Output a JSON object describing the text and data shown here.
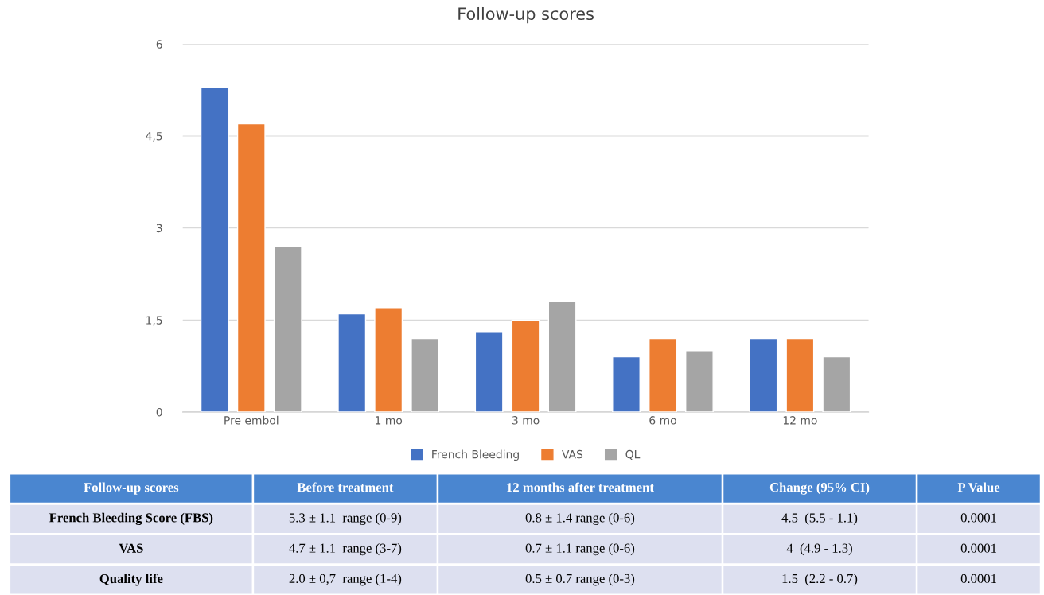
{
  "chart_data": [
    {
      "type": "bar",
      "title": "Follow-up scores",
      "categories": [
        "Pre embol",
        "1 mo",
        "3 mo",
        "6 mo",
        "12 mo"
      ],
      "series": [
        {
          "name": "French Bleeding",
          "color": "#4472c4",
          "values": [
            5.3,
            1.6,
            1.3,
            0.9,
            1.2
          ]
        },
        {
          "name": "VAS",
          "color": "#ed7d31",
          "values": [
            4.7,
            1.7,
            1.5,
            1.2,
            1.2
          ]
        },
        {
          "name": "QL",
          "color": "#a5a5a5",
          "values": [
            2.7,
            1.2,
            1.8,
            1.0,
            0.9
          ]
        }
      ],
      "ylim": [
        0,
        6
      ],
      "yticks": [
        0,
        {
          "value": 1.5,
          "label": "1,5"
        },
        3,
        {
          "value": 4.5,
          "label": "4,5"
        },
        6
      ],
      "grid": "y",
      "legend": "bottom"
    },
    {
      "type": "other",
      "categories": [
        "Follow-up scores",
        "Before treatment",
        "12 months after treatment",
        "Change (95% CI)",
        "P Value"
      ],
      "annotations": [
        "French Bleeding Score (FBS)",
        "5.3 ± 1.1  range (0-9)",
        "0.8 ± 1.4 range (0-6)",
        "4.5  (5.5 - 1.1)",
        "0.0001",
        "VAS",
        "4.7 ± 1.1  range (3-7)",
        "0.7 ± 1.1 range (0-6)",
        "4  (4.9 - 1.3)",
        "0.0001",
        "Quality life",
        "2.0 ± 0,7  range (1-4)",
        "0.5 ± 0.7 range (0-3)",
        "1.5  (2.2 - 0.7)",
        "0.0001"
      ]
    }
  ]
}
